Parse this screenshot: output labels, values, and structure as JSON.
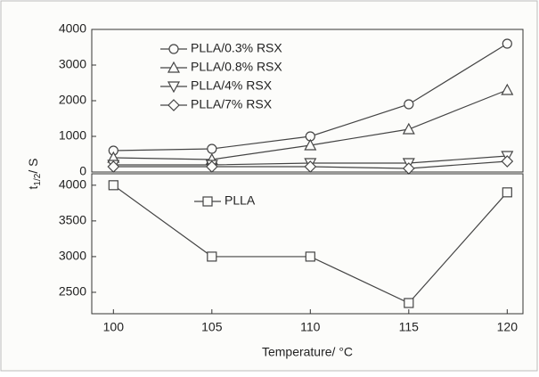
{
  "chart_data": [
    {
      "type": "line",
      "x": [
        100,
        105,
        110,
        115,
        120
      ],
      "xlim": [
        98.9,
        120.8
      ],
      "ylim": [
        0,
        4000
      ],
      "yticks": [
        0,
        1000,
        2000,
        3000,
        4000
      ],
      "legend": "upper-left",
      "series": [
        {
          "name": "PLLA/0.3% RSX",
          "marker": "circle",
          "color": "#444444",
          "values": [
            600,
            650,
            1000,
            1900,
            3600
          ]
        },
        {
          "name": "PLLA/0.8% RSX",
          "marker": "triangle-up",
          "color": "#444444",
          "values": [
            400,
            350,
            750,
            1200,
            2300
          ]
        },
        {
          "name": "PLLA/4% RSX",
          "marker": "triangle-down",
          "color": "#444444",
          "values": [
            200,
            200,
            250,
            250,
            450
          ]
        },
        {
          "name": "PLLA/7% RSX",
          "marker": "diamond",
          "color": "#444444",
          "values": [
            150,
            150,
            150,
            100,
            300
          ]
        }
      ]
    },
    {
      "type": "line",
      "x": [
        100,
        105,
        110,
        115,
        120
      ],
      "xlim": [
        98.9,
        120.8
      ],
      "xticks": [
        100,
        105,
        110,
        115,
        120
      ],
      "ylim": [
        2200,
        4160
      ],
      "yticks": [
        2500,
        3000,
        3500,
        4000
      ],
      "xlabel": "Temperature/ °C",
      "ylabel": {
        "main": "t",
        "sub": "1/2",
        "suffix": "/ S"
      },
      "legend": "upper-left",
      "series": [
        {
          "name": "PLLA",
          "marker": "square",
          "color": "#444444",
          "values": [
            4000,
            3000,
            3000,
            2350,
            3900
          ]
        }
      ]
    }
  ]
}
